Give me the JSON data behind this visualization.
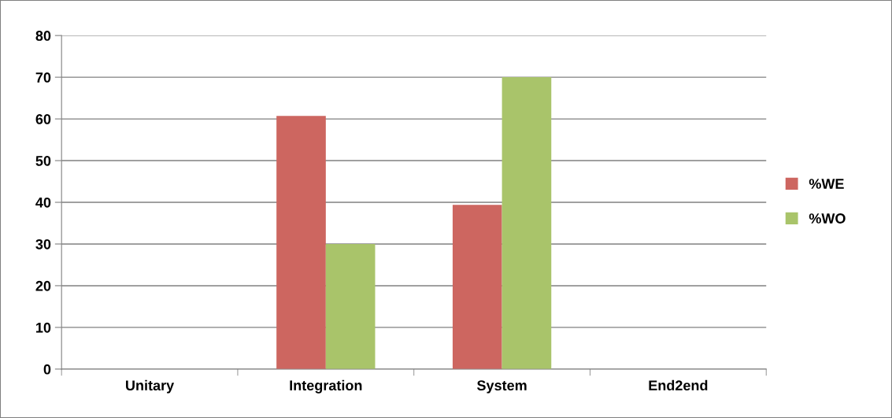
{
  "chart_data": {
    "type": "bar",
    "categories": [
      "Unitary",
      "Integration",
      "System",
      "End2end"
    ],
    "series": [
      {
        "name": "%WE",
        "color": "#cd6660",
        "values": [
          0,
          60.7,
          39.4,
          0
        ]
      },
      {
        "name": "%WO",
        "color": "#a9c46a",
        "values": [
          0,
          30,
          70,
          0
        ]
      }
    ],
    "ylim": [
      0,
      80
    ],
    "yticks": [
      0,
      10,
      20,
      30,
      40,
      50,
      60,
      70,
      80
    ],
    "grid": "y",
    "legend": "right"
  }
}
